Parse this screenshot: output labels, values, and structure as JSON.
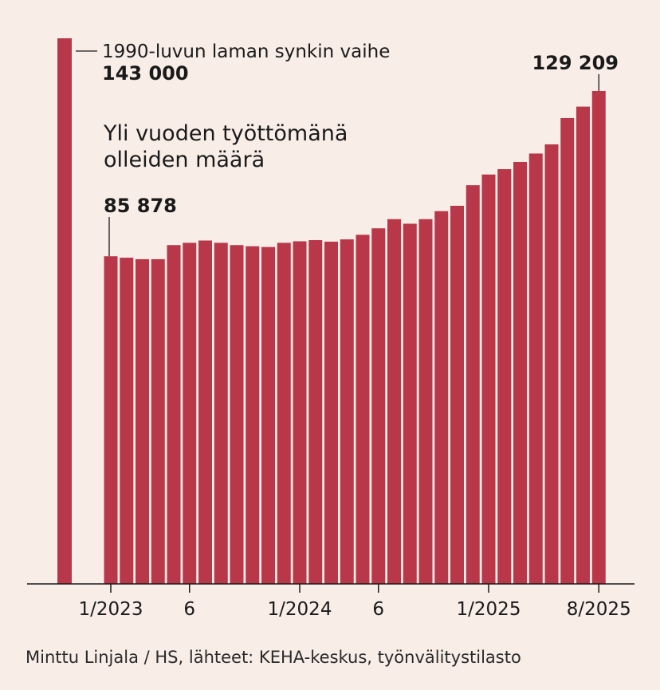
{
  "chart_data": {
    "type": "bar",
    "title_lines": [
      "Yli vuoden työttömänä",
      "olleiden määrä"
    ],
    "reference_bar": {
      "label": "1990-luvun laman synkin vaihe",
      "value_label": "143 000",
      "value": 143000
    },
    "start_annotation": {
      "value_label": "85 878",
      "value": 85878
    },
    "end_annotation": {
      "value_label": "129 209",
      "value": 129209
    },
    "months": [
      "1/2023",
      "2/2023",
      "3/2023",
      "4/2023",
      "5/2023",
      "6/2023",
      "7/2023",
      "8/2023",
      "9/2023",
      "10/2023",
      "11/2023",
      "12/2023",
      "1/2024",
      "2/2024",
      "3/2024",
      "4/2024",
      "5/2024",
      "6/2024",
      "7/2024",
      "8/2024",
      "9/2024",
      "10/2024",
      "11/2024",
      "12/2024",
      "1/2025",
      "2/2025",
      "3/2025",
      "4/2025",
      "5/2025",
      "6/2025",
      "7/2025",
      "8/2025"
    ],
    "values": [
      85878,
      85500,
      85100,
      85100,
      88800,
      89400,
      90000,
      89400,
      88800,
      88500,
      88300,
      89400,
      89800,
      90100,
      89700,
      90300,
      91500,
      93200,
      95600,
      94400,
      95600,
      97700,
      99100,
      104500,
      107300,
      108700,
      110600,
      112800,
      115200,
      122100,
      125100,
      129209
    ],
    "x_tick_labels": [
      {
        "label": "1/2023",
        "index": 0
      },
      {
        "label": "6",
        "index": 5
      },
      {
        "label": "1/2024",
        "index": 12
      },
      {
        "label": "6",
        "index": 17
      },
      {
        "label": "1/2025",
        "index": 24
      },
      {
        "label": "8/2025",
        "index": 31
      }
    ],
    "ylim": [
      0,
      143000
    ],
    "xlabel": "",
    "ylabel": ""
  },
  "credit": "Minttu Linjala / HS, lähteet: KEHA-keskus, työnvälitystilasto"
}
